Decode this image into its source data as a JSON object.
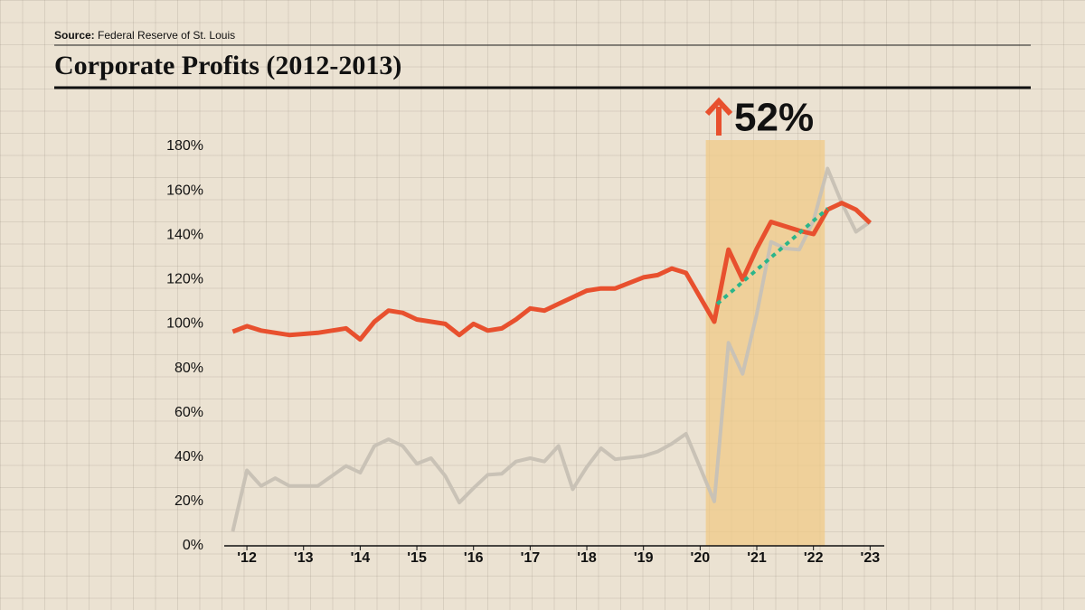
{
  "chart_data": {
    "type": "line",
    "source_label": "Source:",
    "source": "Federal Reserve of St. Louis",
    "title": "Corporate Profits (2012-2013)",
    "annotation": "52%",
    "xlim": [
      2011.6,
      2023.25
    ],
    "ylim": [
      0,
      180
    ],
    "xticks": [
      {
        "value": 2012,
        "label": "'12"
      },
      {
        "value": 2013,
        "label": "'13"
      },
      {
        "value": 2014,
        "label": "'14"
      },
      {
        "value": 2015,
        "label": "'15"
      },
      {
        "value": 2016,
        "label": "'16"
      },
      {
        "value": 2017,
        "label": "'17"
      },
      {
        "value": 2018,
        "label": "'18"
      },
      {
        "value": 2019,
        "label": "'19"
      },
      {
        "value": 2020,
        "label": "'20"
      },
      {
        "value": 2021,
        "label": "'21"
      },
      {
        "value": 2022,
        "label": "'22"
      },
      {
        "value": 2023,
        "label": "'23"
      }
    ],
    "yticks": [
      {
        "value": 0,
        "label": "0%"
      },
      {
        "value": 20,
        "label": "20%"
      },
      {
        "value": 40,
        "label": "40%"
      },
      {
        "value": 60,
        "label": "60%"
      },
      {
        "value": 80,
        "label": "80%"
      },
      {
        "value": 100,
        "label": "100%"
      },
      {
        "value": 120,
        "label": "120%"
      },
      {
        "value": 140,
        "label": "140%"
      },
      {
        "value": 160,
        "label": "160%"
      },
      {
        "value": 180,
        "label": "180%"
      }
    ],
    "highlight": {
      "x": [
        2020.1,
        2022.2
      ],
      "color": "#f0c987"
    },
    "series": [
      {
        "color": "#c9c2b6",
        "width": 4,
        "dashed": false,
        "x": [
          2011.75,
          2012.0,
          2012.25,
          2012.5,
          2012.75,
          2013.25,
          2013.75,
          2014.0,
          2014.25,
          2014.5,
          2014.75,
          2015.0,
          2015.25,
          2015.5,
          2015.75,
          2016.0,
          2016.25,
          2016.5,
          2016.75,
          2017.0,
          2017.25,
          2017.5,
          2017.75,
          2018.0,
          2018.25,
          2018.5,
          2019.0,
          2019.25,
          2019.5,
          2019.75,
          2020.25,
          2020.5,
          2020.75,
          2021.0,
          2021.25,
          2021.5,
          2021.75,
          2022.0,
          2022.25,
          2022.5,
          2022.75,
          2023.0
        ],
        "values": [
          6.5,
          34,
          27,
          30.5,
          27,
          27,
          36,
          33,
          45,
          48,
          45,
          37,
          39.5,
          31.5,
          19.5,
          26,
          32,
          32.5,
          38,
          39.5,
          38,
          45,
          25.5,
          35.5,
          44,
          39,
          40.5,
          42.5,
          46,
          50.5,
          20,
          91.5,
          77.5,
          104.5,
          137,
          134,
          133.5,
          146.5,
          170,
          154.5,
          141.5,
          146
        ]
      },
      {
        "color": "#e8502e",
        "width": 5,
        "dashed": false,
        "x": [
          2011.75,
          2012.0,
          2012.25,
          2012.75,
          2013.25,
          2013.75,
          2014.0,
          2014.25,
          2014.5,
          2014.75,
          2015.0,
          2015.5,
          2015.75,
          2016.0,
          2016.25,
          2016.5,
          2016.75,
          2017.0,
          2017.25,
          2017.5,
          2018.0,
          2018.25,
          2018.5,
          2019.0,
          2019.25,
          2019.5,
          2019.75,
          2020.25,
          2020.5,
          2020.75,
          2021.0,
          2021.25,
          2021.5,
          2021.75,
          2022.0,
          2022.25,
          2022.5,
          2022.75,
          2023.0
        ],
        "values": [
          96.5,
          99,
          97,
          95,
          96,
          98,
          93,
          101,
          106,
          105,
          102,
          100,
          95,
          100,
          97,
          98,
          102,
          107,
          106,
          109,
          115,
          116,
          116,
          121,
          122,
          125,
          123,
          101,
          133.5,
          120,
          134,
          146,
          144,
          142,
          140.5,
          151.5,
          154.5,
          151.5,
          145.5
        ]
      },
      {
        "color": "#2bb58a",
        "width": 4,
        "dashed": true,
        "x": [
          2020.3,
          2022.25
        ],
        "values": [
          109,
          152
        ]
      }
    ]
  }
}
